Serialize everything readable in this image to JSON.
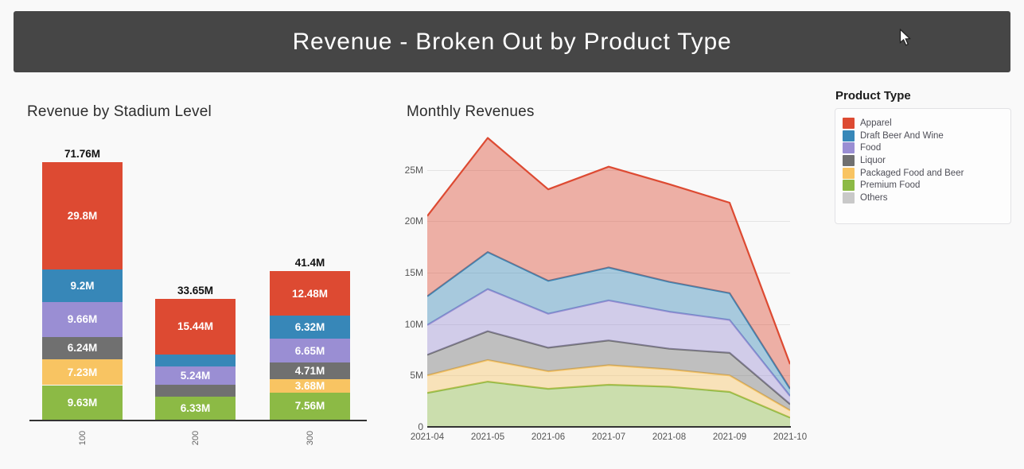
{
  "header": {
    "title": "Revenue - Broken Out by Product Type"
  },
  "colors": {
    "apparel": "#dd4a32",
    "draft_beer_and_wine": "#3787b8",
    "food": "#9a8ed3",
    "liquor": "#707070",
    "packaged_food_and_beer": "#f8c462",
    "premium_food": "#8cba45",
    "others": "#c9c9c9",
    "header_bg": "#464646",
    "axis": "#333333"
  },
  "legend": {
    "title": "Product Type",
    "items": [
      {
        "label": "Apparel",
        "color_key": "apparel"
      },
      {
        "label": "Draft Beer And Wine",
        "color_key": "draft_beer_and_wine"
      },
      {
        "label": "Food",
        "color_key": "food"
      },
      {
        "label": "Liquor",
        "color_key": "liquor"
      },
      {
        "label": "Packaged Food and Beer",
        "color_key": "packaged_food_and_beer"
      },
      {
        "label": "Premium Food",
        "color_key": "premium_food"
      },
      {
        "label": "Others",
        "color_key": "others"
      }
    ]
  },
  "chart_data": [
    {
      "type": "bar",
      "title": "Revenue by Stadium Level",
      "stacked": true,
      "categories": [
        "100",
        "200",
        "300"
      ],
      "totals": [
        71.76,
        33.65,
        41.4
      ],
      "total_labels": [
        "71.76M",
        "33.65M",
        "41.4M"
      ],
      "unit": "M",
      "ylim": [
        0,
        75
      ],
      "series": [
        {
          "name": "Premium Food",
          "color_key": "premium_food",
          "values": [
            9.63,
            6.33,
            7.56
          ],
          "labels": [
            "9.63M",
            "6.33M",
            "7.56M"
          ]
        },
        {
          "name": "Packaged Food and Beer",
          "color_key": "packaged_food_and_beer",
          "values": [
            7.23,
            0,
            3.68
          ],
          "labels": [
            "7.23M",
            "",
            "3.68M"
          ]
        },
        {
          "name": "Liquor",
          "color_key": "liquor",
          "values": [
            6.24,
            3.32,
            4.71
          ],
          "labels": [
            "6.24M",
            "",
            "4.71M"
          ]
        },
        {
          "name": "Food",
          "color_key": "food",
          "values": [
            9.66,
            5.24,
            6.65
          ],
          "labels": [
            "9.66M",
            "5.24M",
            "6.65M"
          ]
        },
        {
          "name": "Draft Beer And Wine",
          "color_key": "draft_beer_and_wine",
          "values": [
            9.2,
            3.32,
            6.32
          ],
          "labels": [
            "9.2M",
            "",
            "6.32M"
          ]
        },
        {
          "name": "Apparel",
          "color_key": "apparel",
          "values": [
            29.8,
            15.44,
            12.48
          ],
          "labels": [
            "29.8M",
            "15.44M",
            "12.48M"
          ]
        }
      ]
    },
    {
      "type": "area",
      "title": "Monthly Revenues",
      "stacked": true,
      "x": [
        "2021-04",
        "2021-05",
        "2021-06",
        "2021-07",
        "2021-08",
        "2021-09",
        "2021-10"
      ],
      "yticks": [
        "0",
        "5M",
        "10M",
        "15M",
        "20M",
        "25M"
      ],
      "ylim": [
        0,
        28.7
      ],
      "grid": true,
      "series": [
        {
          "name": "Premium Food",
          "color_key": "premium_food",
          "values": [
            3.3,
            4.4,
            3.7,
            4.1,
            3.9,
            3.4,
            0.9
          ]
        },
        {
          "name": "Packaged Food and Beer",
          "color_key": "packaged_food_and_beer",
          "values": [
            1.7,
            2.1,
            1.7,
            1.9,
            1.7,
            1.6,
            0.7
          ]
        },
        {
          "name": "Liquor",
          "color_key": "liquor",
          "values": [
            2.0,
            2.8,
            2.3,
            2.4,
            2.0,
            2.2,
            0.6
          ]
        },
        {
          "name": "Food",
          "color_key": "food",
          "values": [
            2.9,
            4.1,
            3.3,
            3.9,
            3.6,
            3.2,
            0.8
          ]
        },
        {
          "name": "Draft Beer And Wine",
          "color_key": "draft_beer_and_wine",
          "values": [
            2.8,
            3.6,
            3.2,
            3.2,
            2.9,
            2.6,
            0.7
          ]
        },
        {
          "name": "Apparel",
          "color_key": "apparel",
          "values": [
            7.8,
            11.1,
            8.9,
            9.8,
            9.5,
            8.8,
            2.4
          ]
        }
      ]
    }
  ]
}
